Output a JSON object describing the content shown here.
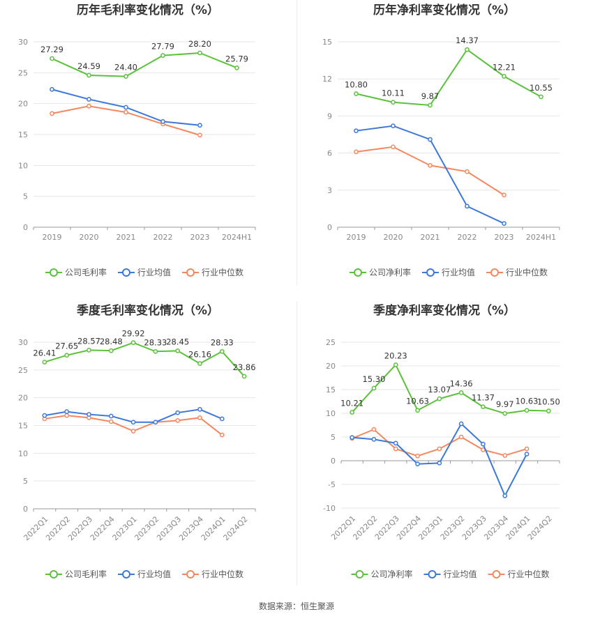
{
  "colors": {
    "company": "#5ac23a",
    "industry_avg": "#3c78d8",
    "industry_median": "#f4875f",
    "grid": "#e6e6e6",
    "axis": "#999999",
    "label": "#333333",
    "tick": "#888888",
    "title": "#333333"
  },
  "source": "数据来源：恒生聚源",
  "chart_data": [
    {
      "type": "line",
      "title": "历年毛利率变化情况（%）",
      "categories": [
        "2019",
        "2020",
        "2021",
        "2022",
        "2023",
        "2024H1"
      ],
      "ylim": [
        0,
        30
      ],
      "yticks": [
        0,
        5,
        10,
        15,
        20,
        25,
        30
      ],
      "rotate_x_labels": false,
      "grid": true,
      "legend_position": "bottom",
      "series": [
        {
          "name": "公司毛利率",
          "color": "#5ac23a",
          "labeled": true,
          "values": [
            27.29,
            24.59,
            24.4,
            27.79,
            28.2,
            25.79
          ],
          "labels": [
            "27.29",
            "24.59",
            "24.40",
            "27.79",
            "28.20",
            "25.79"
          ]
        },
        {
          "name": "行业均值",
          "color": "#3c78d8",
          "labeled": false,
          "values": [
            22.3,
            20.7,
            19.4,
            17.1,
            16.5,
            null
          ]
        },
        {
          "name": "行业中位数",
          "color": "#f4875f",
          "labeled": false,
          "values": [
            18.4,
            19.6,
            18.6,
            16.7,
            14.9,
            null
          ]
        }
      ]
    },
    {
      "type": "line",
      "title": "历年净利率变化情况（%）",
      "categories": [
        "2019",
        "2020",
        "2021",
        "2022",
        "2023",
        "2024H1"
      ],
      "ylim": [
        0,
        15
      ],
      "yticks": [
        0,
        3,
        6,
        9,
        12,
        15
      ],
      "rotate_x_labels": false,
      "grid": true,
      "legend_position": "bottom",
      "series": [
        {
          "name": "公司净利率",
          "color": "#5ac23a",
          "labeled": true,
          "values": [
            10.8,
            10.11,
            9.87,
            14.37,
            12.21,
            10.55
          ],
          "labels": [
            "10.80",
            "10.11",
            "9.87",
            "14.37",
            "12.21",
            "10.55"
          ]
        },
        {
          "name": "行业均值",
          "color": "#3c78d8",
          "labeled": false,
          "values": [
            7.8,
            8.2,
            7.1,
            1.7,
            0.3,
            null
          ]
        },
        {
          "name": "行业中位数",
          "color": "#f4875f",
          "labeled": false,
          "values": [
            6.1,
            6.5,
            5.0,
            4.5,
            2.6,
            null
          ]
        }
      ]
    },
    {
      "type": "line",
      "title": "季度毛利率变化情况（%）",
      "categories": [
        "2022Q1",
        "2022Q2",
        "2022Q3",
        "2022Q4",
        "2023Q1",
        "2023Q2",
        "2023Q3",
        "2023Q4",
        "2024Q1",
        "2024Q2"
      ],
      "ylim": [
        0,
        30
      ],
      "yticks": [
        0,
        5,
        10,
        15,
        20,
        25,
        30
      ],
      "rotate_x_labels": true,
      "grid": true,
      "legend_position": "bottom",
      "series": [
        {
          "name": "公司毛利率",
          "color": "#5ac23a",
          "labeled": true,
          "values": [
            26.41,
            27.65,
            28.57,
            28.48,
            29.92,
            28.33,
            28.45,
            26.16,
            28.33,
            23.86
          ],
          "labels": [
            "26.41",
            "27.65",
            "28.57",
            "28.48",
            "29.92",
            "28.33",
            "28.45",
            "26.16",
            "28.33",
            "23.86"
          ]
        },
        {
          "name": "行业均值",
          "color": "#3c78d8",
          "labeled": false,
          "values": [
            16.8,
            17.5,
            17.0,
            16.7,
            15.6,
            15.6,
            17.3,
            17.9,
            16.2,
            null
          ]
        },
        {
          "name": "行业中位数",
          "color": "#f4875f",
          "labeled": false,
          "values": [
            16.2,
            16.8,
            16.4,
            15.7,
            14.0,
            15.6,
            15.9,
            16.4,
            13.3,
            null
          ]
        }
      ]
    },
    {
      "type": "line",
      "title": "季度净利率变化情况（%）",
      "categories": [
        "2022Q1",
        "2022Q2",
        "2022Q3",
        "2022Q4",
        "2023Q1",
        "2023Q2",
        "2023Q3",
        "2023Q4",
        "2024Q1",
        "2024Q2"
      ],
      "ylim": [
        -10,
        25
      ],
      "yticks": [
        -10,
        -5,
        0,
        5,
        10,
        15,
        20,
        25
      ],
      "rotate_x_labels": true,
      "grid": true,
      "legend_position": "bottom",
      "series": [
        {
          "name": "公司净利率",
          "color": "#5ac23a",
          "labeled": true,
          "values": [
            10.21,
            15.3,
            20.23,
            10.63,
            13.07,
            14.36,
            11.37,
            9.97,
            10.63,
            10.5
          ],
          "labels": [
            "10.21",
            "15.30",
            "20.23",
            "10.63",
            "13.07",
            "14.36",
            "11.37",
            "9.97",
            "10.63",
            "10.50"
          ]
        },
        {
          "name": "行业均值",
          "color": "#3c78d8",
          "labeled": false,
          "values": [
            4.9,
            4.5,
            3.7,
            -0.7,
            -0.5,
            7.8,
            3.5,
            -7.4,
            1.4,
            null
          ]
        },
        {
          "name": "行业中位数",
          "color": "#f4875f",
          "labeled": false,
          "values": [
            4.7,
            6.6,
            2.5,
            1.0,
            2.5,
            5.0,
            2.3,
            1.1,
            2.5,
            null
          ]
        }
      ]
    }
  ]
}
